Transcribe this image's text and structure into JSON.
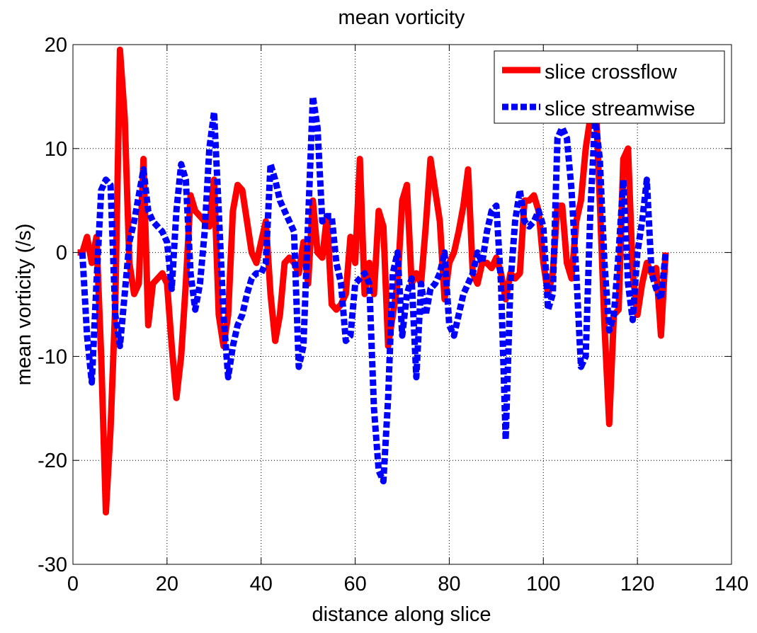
{
  "chart_data": {
    "type": "line",
    "title": "mean vorticity",
    "xlabel": "distance along slice",
    "ylabel": "mean vorticity (/s)",
    "xlim": [
      0,
      140
    ],
    "ylim": [
      -30,
      20
    ],
    "xticks": [
      0,
      20,
      40,
      60,
      80,
      100,
      120,
      140
    ],
    "yticks": [
      -30,
      -20,
      -10,
      0,
      10,
      20
    ],
    "grid": true,
    "legend_position": "top-right",
    "series": [
      {
        "name": "slice crossflow",
        "color": "#ff0000",
        "style": "solid",
        "points": [
          [
            1,
            0
          ],
          [
            2,
            0
          ],
          [
            3,
            1.5
          ],
          [
            4,
            -1
          ],
          [
            5,
            1.5
          ],
          [
            6,
            -10
          ],
          [
            7,
            -25
          ],
          [
            8,
            -17
          ],
          [
            9,
            -5
          ],
          [
            10,
            19.5
          ],
          [
            11,
            13
          ],
          [
            12,
            -1
          ],
          [
            13,
            -4
          ],
          [
            14,
            -3
          ],
          [
            15,
            9
          ],
          [
            16,
            -7
          ],
          [
            17,
            -3
          ],
          [
            18,
            -2.5
          ],
          [
            19,
            -2
          ],
          [
            20,
            -3
          ],
          [
            21,
            -9
          ],
          [
            22,
            -14
          ],
          [
            23,
            -10
          ],
          [
            24,
            -3
          ],
          [
            25,
            5.5
          ],
          [
            26,
            4
          ],
          [
            27,
            3.5
          ],
          [
            28,
            3
          ],
          [
            29,
            2.5
          ],
          [
            30,
            7
          ],
          [
            31,
            -6
          ],
          [
            32,
            -9
          ],
          [
            33,
            -6
          ],
          [
            34,
            4
          ],
          [
            35,
            6.5
          ],
          [
            36,
            6
          ],
          [
            37,
            3
          ],
          [
            38,
            0
          ],
          [
            39,
            -1
          ],
          [
            40,
            1
          ],
          [
            41,
            3
          ],
          [
            42,
            -4
          ],
          [
            43,
            -8.5
          ],
          [
            44,
            -6
          ],
          [
            45,
            -1
          ],
          [
            46,
            -0.5
          ],
          [
            47,
            -1
          ],
          [
            48,
            -2
          ],
          [
            49,
            1
          ],
          [
            50,
            -3
          ],
          [
            51,
            5
          ],
          [
            52,
            0
          ],
          [
            53,
            -0.5
          ],
          [
            54,
            3.5
          ],
          [
            55,
            -5
          ],
          [
            56,
            -5.5
          ],
          [
            57,
            -5
          ],
          [
            58,
            -4
          ],
          [
            59,
            1.5
          ],
          [
            60,
            -1
          ],
          [
            61,
            9
          ],
          [
            62,
            -4
          ],
          [
            63,
            -1
          ],
          [
            64,
            -4
          ],
          [
            65,
            4
          ],
          [
            66,
            2.5
          ],
          [
            67,
            -9
          ],
          [
            68,
            -6
          ],
          [
            69,
            -3
          ],
          [
            70,
            5
          ],
          [
            71,
            6.5
          ],
          [
            72,
            -3
          ],
          [
            73,
            -2
          ],
          [
            74,
            -3
          ],
          [
            75,
            2.5
          ],
          [
            76,
            9
          ],
          [
            77,
            6
          ],
          [
            78,
            3
          ],
          [
            79,
            -4.5
          ],
          [
            80,
            -1
          ],
          [
            81,
            0
          ],
          [
            82,
            2
          ],
          [
            83,
            4.5
          ],
          [
            84,
            8
          ],
          [
            85,
            -2
          ],
          [
            86,
            -3
          ],
          [
            87,
            -1
          ],
          [
            88,
            -1
          ],
          [
            89,
            -1.5
          ],
          [
            90,
            -0.5
          ],
          [
            91,
            -2
          ],
          [
            92,
            -4.5
          ],
          [
            93,
            -2
          ],
          [
            94,
            -2.5
          ],
          [
            95,
            -2
          ],
          [
            96,
            5
          ],
          [
            97,
            5
          ],
          [
            98,
            5.5
          ],
          [
            99,
            4
          ],
          [
            100,
            -1
          ],
          [
            101,
            -4
          ],
          [
            102,
            -2
          ],
          [
            103,
            4.5
          ],
          [
            104,
            4.5
          ],
          [
            105,
            -1
          ],
          [
            106,
            -2.5
          ],
          [
            107,
            3
          ],
          [
            108,
            5
          ],
          [
            109,
            10
          ],
          [
            110,
            13
          ],
          [
            111,
            16
          ],
          [
            112,
            5
          ],
          [
            113,
            -7
          ],
          [
            114,
            -16.5
          ],
          [
            115,
            -6
          ],
          [
            116,
            -5.5
          ],
          [
            117,
            9
          ],
          [
            118,
            10
          ],
          [
            119,
            -2
          ],
          [
            120,
            -6
          ],
          [
            121,
            -3
          ],
          [
            122,
            -1
          ],
          [
            123,
            -2
          ],
          [
            124,
            -1.5
          ],
          [
            125,
            -8
          ],
          [
            126,
            0
          ]
        ]
      },
      {
        "name": "slice streamwise",
        "color": "#0000ff",
        "style": "dashed",
        "points": [
          [
            2,
            0
          ],
          [
            3,
            -8
          ],
          [
            4,
            -12.5
          ],
          [
            5,
            -3
          ],
          [
            6,
            6
          ],
          [
            7,
            7
          ],
          [
            8,
            6.5
          ],
          [
            9,
            -6
          ],
          [
            10,
            -9
          ],
          [
            11,
            -4
          ],
          [
            12,
            1
          ],
          [
            13,
            3
          ],
          [
            14,
            5.5
          ],
          [
            15,
            8
          ],
          [
            16,
            4
          ],
          [
            17,
            3
          ],
          [
            18,
            2.5
          ],
          [
            19,
            2
          ],
          [
            20,
            1
          ],
          [
            21,
            -3.5
          ],
          [
            22,
            4
          ],
          [
            23,
            8.5
          ],
          [
            24,
            7
          ],
          [
            25,
            -2
          ],
          [
            26,
            -5.5
          ],
          [
            27,
            -3
          ],
          [
            28,
            2
          ],
          [
            29,
            10
          ],
          [
            30,
            13.5
          ],
          [
            31,
            4
          ],
          [
            32,
            -6
          ],
          [
            33,
            -12
          ],
          [
            34,
            -9
          ],
          [
            35,
            -7
          ],
          [
            36,
            -6
          ],
          [
            37,
            -4
          ],
          [
            38,
            -2.5
          ],
          [
            39,
            -2
          ],
          [
            40,
            -2
          ],
          [
            41,
            -1
          ],
          [
            42,
            8.5
          ],
          [
            43,
            7
          ],
          [
            44,
            5
          ],
          [
            45,
            4
          ],
          [
            46,
            3
          ],
          [
            47,
            2
          ],
          [
            48,
            -11
          ],
          [
            49,
            -9
          ],
          [
            50,
            3
          ],
          [
            51,
            15
          ],
          [
            52,
            12
          ],
          [
            53,
            3
          ],
          [
            54,
            3.5
          ],
          [
            55,
            3.5
          ],
          [
            56,
            -1
          ],
          [
            57,
            -3
          ],
          [
            58,
            -8.5
          ],
          [
            59,
            -8
          ],
          [
            60,
            -3
          ],
          [
            61,
            -2.5
          ],
          [
            62,
            -2
          ],
          [
            63,
            -3
          ],
          [
            64,
            -15
          ],
          [
            65,
            -21
          ],
          [
            66,
            -22
          ],
          [
            67,
            -14
          ],
          [
            68,
            -2
          ],
          [
            69,
            0
          ],
          [
            70,
            -8
          ],
          [
            71,
            -4
          ],
          [
            72,
            -2.5
          ],
          [
            73,
            -12
          ],
          [
            74,
            -3
          ],
          [
            75,
            -6
          ],
          [
            76,
            -3.5
          ],
          [
            77,
            -3
          ],
          [
            78,
            -2
          ],
          [
            79,
            0
          ],
          [
            80,
            -7
          ],
          [
            81,
            -8
          ],
          [
            82,
            -6
          ],
          [
            83,
            -4
          ],
          [
            84,
            -3
          ],
          [
            85,
            -2
          ],
          [
            86,
            0
          ],
          [
            87,
            -1
          ],
          [
            88,
            2
          ],
          [
            89,
            4
          ],
          [
            90,
            4.5
          ],
          [
            91,
            -3
          ],
          [
            92,
            -18
          ],
          [
            93,
            -3
          ],
          [
            94,
            3
          ],
          [
            95,
            6
          ],
          [
            96,
            3
          ],
          [
            97,
            2.5
          ],
          [
            98,
            3
          ],
          [
            99,
            4
          ],
          [
            100,
            2.5
          ],
          [
            101,
            -5.5
          ],
          [
            102,
            -4
          ],
          [
            103,
            11
          ],
          [
            104,
            12
          ],
          [
            105,
            11
          ],
          [
            106,
            6
          ],
          [
            107,
            -2
          ],
          [
            108,
            -11
          ],
          [
            109,
            -10
          ],
          [
            110,
            4
          ],
          [
            111,
            13
          ],
          [
            112,
            9
          ],
          [
            113,
            -1
          ],
          [
            114,
            -7.5
          ],
          [
            115,
            -6
          ],
          [
            116,
            0
          ],
          [
            117,
            7
          ],
          [
            118,
            -3
          ],
          [
            119,
            -6.5
          ],
          [
            120,
            0
          ],
          [
            121,
            3
          ],
          [
            122,
            7
          ],
          [
            123,
            -2
          ],
          [
            124,
            -3.5
          ],
          [
            125,
            -4.5
          ],
          [
            126,
            0
          ]
        ]
      }
    ]
  }
}
